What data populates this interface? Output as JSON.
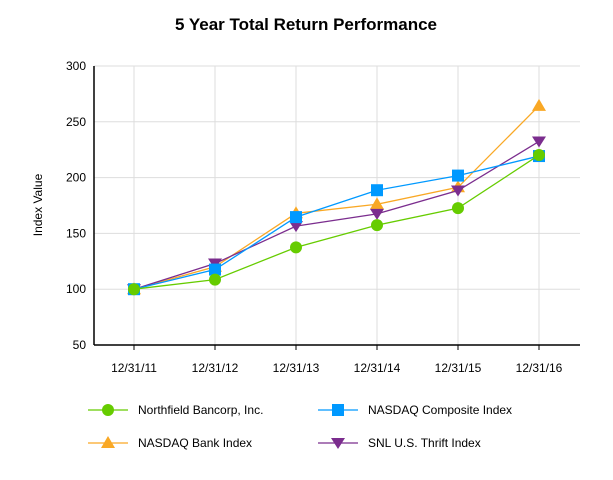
{
  "chart_data": {
    "type": "line",
    "title": "5 Year Total Return Performance",
    "xlabel": "",
    "ylabel": "Index Value",
    "categories": [
      "12/31/11",
      "12/31/12",
      "12/31/13",
      "12/31/14",
      "12/31/15",
      "12/31/16"
    ],
    "ylim": [
      50,
      300
    ],
    "yticks": [
      50,
      100,
      150,
      200,
      250,
      300
    ],
    "grid": true,
    "legend_position": "bottom",
    "series": [
      {
        "name": "Northfield Bancorp, Inc.",
        "color": "#66cc00",
        "marker": "circle",
        "values": [
          100,
          108.6,
          137.5,
          157.4,
          172.6,
          220.2
        ]
      },
      {
        "name": "NASDAQ Composite Index",
        "color": "#0099ff",
        "marker": "square",
        "values": [
          100,
          117.6,
          164.6,
          188.7,
          201.8,
          219.3
        ]
      },
      {
        "name": "NASDAQ Bank Index",
        "color": "#f9a825",
        "marker": "triangle-up",
        "values": [
          100,
          120.1,
          168.0,
          176.1,
          191.3,
          264.3
        ]
      },
      {
        "name": "SNL U.S. Thrift Index",
        "color": "#7b2d8e",
        "marker": "triangle-down",
        "values": [
          100,
          123.0,
          156.5,
          167.5,
          188.4,
          232.4
        ]
      }
    ]
  }
}
